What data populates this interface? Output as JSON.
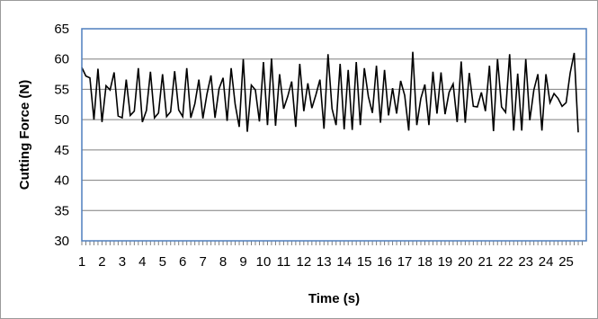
{
  "chart_data": {
    "type": "line",
    "title": "",
    "xlabel": "Time (s)",
    "ylabel": "Cutting Force (N)",
    "ylim": [
      30,
      65
    ],
    "yticks": [
      30,
      35,
      40,
      45,
      50,
      55,
      60,
      65
    ],
    "xlim": [
      1,
      26
    ],
    "xtick_labels": [
      "1",
      "2",
      "3",
      "4",
      "5",
      "6",
      "7",
      "8",
      "9",
      "10",
      "11",
      "12",
      "13",
      "14",
      "15",
      "16",
      "17",
      "18",
      "19",
      "20",
      "21",
      "22",
      "23",
      "24",
      "25"
    ],
    "grid": "horizontal",
    "legend": "none",
    "colors": {
      "plot_border": "#4f7fbe",
      "gridline": "#7f7f7f",
      "line": "#000000"
    },
    "series": [
      {
        "x_start": 1,
        "x_step": 0.2,
        "values": [
          58.6,
          57.2,
          56.9,
          50.0,
          58.4,
          49.6,
          55.6,
          54.9,
          57.8,
          50.6,
          50.3,
          56.6,
          50.7,
          51.4,
          58.5,
          49.6,
          51.5,
          57.9,
          50.3,
          51.1,
          57.5,
          50.5,
          51.3,
          58.0,
          51.6,
          50.5,
          58.5,
          50.3,
          52.6,
          56.6,
          50.2,
          54.2,
          57.3,
          50.3,
          55.1,
          56.9,
          49.8,
          58.5,
          52.5,
          48.8,
          60.0,
          48.0,
          55.7,
          54.9,
          49.7,
          59.5,
          49.1,
          60.1,
          49.0,
          57.5,
          51.8,
          53.8,
          56.3,
          48.8,
          59.2,
          51.4,
          56.0,
          51.9,
          54.1,
          56.6,
          48.5,
          60.8,
          51.8,
          49.1,
          59.2,
          48.4,
          58.2,
          48.3,
          59.5,
          49.1,
          58.5,
          53.8,
          51.1,
          58.9,
          49.5,
          58.2,
          50.7,
          55.2,
          51.0,
          56.4,
          54.0,
          48.2,
          61.2,
          49.1,
          53.5,
          55.8,
          49.1,
          57.9,
          51.0,
          57.8,
          50.9,
          54.5,
          55.9,
          49.6,
          59.6,
          49.5,
          57.7,
          52.2,
          52.1,
          54.5,
          51.4,
          58.9,
          48.1,
          60.0,
          52.1,
          51.2,
          60.8,
          48.2,
          57.6,
          48.2,
          60.0,
          49.9,
          54.9,
          57.5,
          48.2,
          57.5,
          52.8,
          54.3,
          53.5,
          52.2,
          52.8,
          57.7,
          61.0,
          47.9
        ]
      }
    ]
  }
}
